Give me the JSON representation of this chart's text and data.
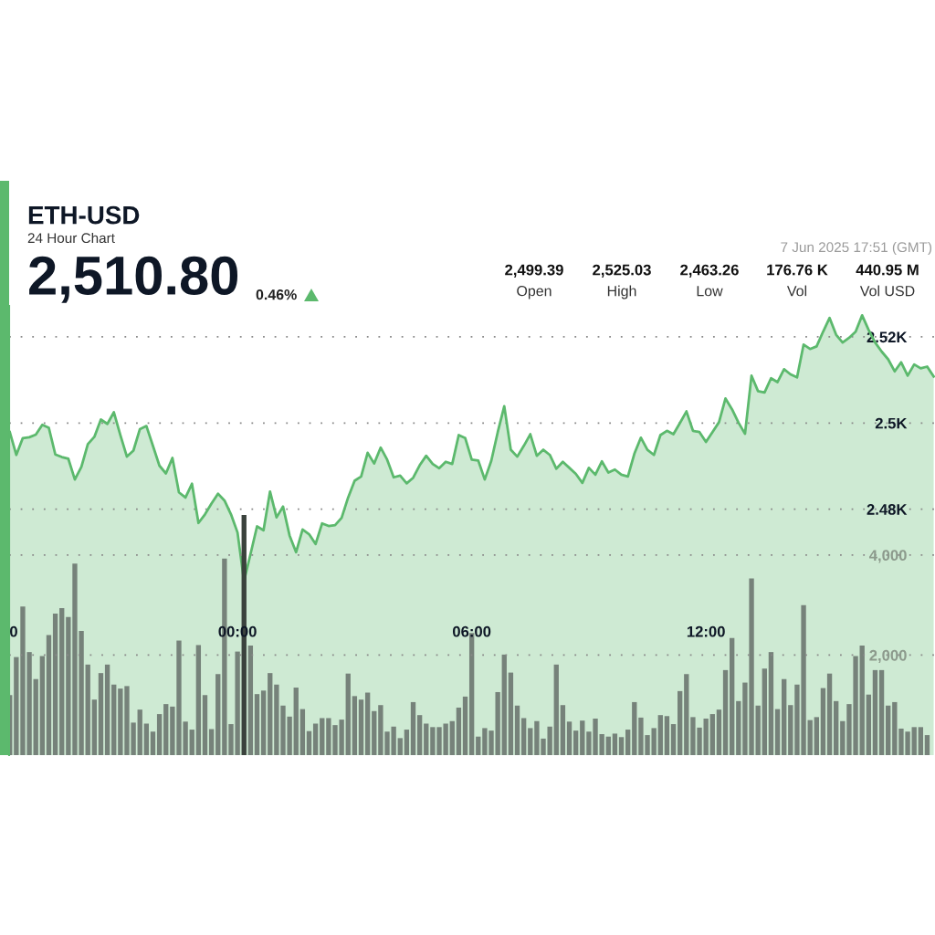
{
  "chart_data": {
    "type": "area",
    "title": "ETH-USD",
    "subtitle": "24 Hour Chart",
    "annotations": [
      "2,510.80",
      "0.46%",
      "7 Jun 2025 17:51 (GMT)",
      "2,499.39",
      "2,525.03",
      "2,463.26",
      "176.76 K",
      "440.95 M",
      "Open",
      "High",
      "Low",
      "Vol",
      "Vol USD"
    ],
    "x": [
      "2025-06-06T18:10",
      "2025-06-06T18:20",
      "2025-06-06T18:30",
      "2025-06-06T18:40",
      "2025-06-06T18:50",
      "2025-06-06T19:00",
      "2025-06-06T19:10",
      "2025-06-06T19:20",
      "2025-06-06T19:30",
      "2025-06-06T19:40",
      "2025-06-06T19:50",
      "2025-06-06T20:00",
      "2025-06-06T20:10",
      "2025-06-06T20:20",
      "2025-06-06T20:30",
      "2025-06-06T20:40",
      "2025-06-06T20:50",
      "2025-06-06T21:00",
      "2025-06-06T21:10",
      "2025-06-06T21:20",
      "2025-06-06T21:30",
      "2025-06-06T21:40",
      "2025-06-06T21:50",
      "2025-06-06T22:00",
      "2025-06-06T22:10",
      "2025-06-06T22:20",
      "2025-06-06T22:30",
      "2025-06-06T22:40",
      "2025-06-06T22:50",
      "2025-06-06T23:00",
      "2025-06-06T23:10",
      "2025-06-06T23:20",
      "2025-06-06T23:30",
      "2025-06-06T23:40",
      "2025-06-06T23:50",
      "2025-06-07T00:00",
      "2025-06-07T00:10",
      "2025-06-07T00:20",
      "2025-06-07T00:30",
      "2025-06-07T00:40",
      "2025-06-07T00:50",
      "2025-06-07T01:00",
      "2025-06-07T01:10",
      "2025-06-07T01:20",
      "2025-06-07T01:30",
      "2025-06-07T01:40",
      "2025-06-07T01:50",
      "2025-06-07T02:00",
      "2025-06-07T02:10",
      "2025-06-07T02:20",
      "2025-06-07T02:30",
      "2025-06-07T02:40",
      "2025-06-07T02:50",
      "2025-06-07T03:00",
      "2025-06-07T03:10",
      "2025-06-07T03:20",
      "2025-06-07T03:30",
      "2025-06-07T03:40",
      "2025-06-07T03:50",
      "2025-06-07T04:00",
      "2025-06-07T04:10",
      "2025-06-07T04:20",
      "2025-06-07T04:30",
      "2025-06-07T04:40",
      "2025-06-07T04:50",
      "2025-06-07T05:00",
      "2025-06-07T05:10",
      "2025-06-07T05:20",
      "2025-06-07T05:30",
      "2025-06-07T05:40",
      "2025-06-07T05:50",
      "2025-06-07T06:00",
      "2025-06-07T06:10",
      "2025-06-07T06:20",
      "2025-06-07T06:30",
      "2025-06-07T06:40",
      "2025-06-07T06:50",
      "2025-06-07T07:00",
      "2025-06-07T07:10",
      "2025-06-07T07:20",
      "2025-06-07T07:30",
      "2025-06-07T07:40",
      "2025-06-07T07:50",
      "2025-06-07T08:00",
      "2025-06-07T08:10",
      "2025-06-07T08:20",
      "2025-06-07T08:30",
      "2025-06-07T08:40",
      "2025-06-07T08:50",
      "2025-06-07T09:00",
      "2025-06-07T09:10",
      "2025-06-07T09:20",
      "2025-06-07T09:30",
      "2025-06-07T09:40",
      "2025-06-07T09:50",
      "2025-06-07T10:00",
      "2025-06-07T10:10",
      "2025-06-07T10:20",
      "2025-06-07T10:30",
      "2025-06-07T10:40",
      "2025-06-07T10:50",
      "2025-06-07T11:00",
      "2025-06-07T11:10",
      "2025-06-07T11:20",
      "2025-06-07T11:30",
      "2025-06-07T11:40",
      "2025-06-07T11:50",
      "2025-06-07T12:00",
      "2025-06-07T12:10",
      "2025-06-07T12:20",
      "2025-06-07T12:30",
      "2025-06-07T12:40",
      "2025-06-07T12:50",
      "2025-06-07T13:00",
      "2025-06-07T13:10",
      "2025-06-07T13:20",
      "2025-06-07T13:30",
      "2025-06-07T13:40",
      "2025-06-07T13:50",
      "2025-06-07T14:00",
      "2025-06-07T14:10",
      "2025-06-07T14:20",
      "2025-06-07T14:30",
      "2025-06-07T14:40",
      "2025-06-07T14:50",
      "2025-06-07T15:00",
      "2025-06-07T15:10",
      "2025-06-07T15:20",
      "2025-06-07T15:30",
      "2025-06-07T15:40",
      "2025-06-07T15:50",
      "2025-06-07T16:00",
      "2025-06-07T16:10",
      "2025-06-07T16:20",
      "2025-06-07T16:30",
      "2025-06-07T16:40",
      "2025-06-07T16:50",
      "2025-06-07T17:00",
      "2025-06-07T17:10",
      "2025-06-07T17:20",
      "2025-06-07T17:30",
      "2025-06-07T17:40",
      "2025-06-07T17:50"
    ],
    "series": [
      {
        "color": "#5cb96d",
        "values": [
          2497.9,
          2492.6,
          2496.5,
          2496.7,
          2497.3,
          2499.6,
          2498.9,
          2492.7,
          2492.1,
          2491.7,
          2486.9,
          2489.8,
          2495.1,
          2496.8,
          2500.8,
          2499.8,
          2502.5,
          2497.2,
          2492.2,
          2493.6,
          2498.6,
          2499.3,
          2494.7,
          2490.1,
          2488.3,
          2491.9,
          2483.9,
          2482.7,
          2485.9,
          2476.8,
          2478.8,
          2481.3,
          2483.6,
          2482.0,
          2478.8,
          2474.6,
          2463.3,
          2469.6,
          2476.0,
          2475.1,
          2484.1,
          2478.1,
          2480.6,
          2473.9,
          2470.0,
          2475.3,
          2474.2,
          2471.9,
          2476.7,
          2476.1,
          2476.3,
          2478.0,
          2482.7,
          2486.6,
          2487.6,
          2493.1,
          2490.6,
          2494.3,
          2491.5,
          2487.4,
          2487.8,
          2486.0,
          2487.3,
          2490.2,
          2492.4,
          2490.5,
          2489.5,
          2491.0,
          2490.5,
          2497.2,
          2496.5,
          2491.5,
          2491.3,
          2486.9,
          2491.2,
          2497.9,
          2503.9,
          2493.8,
          2492.2,
          2494.7,
          2497.4,
          2492.4,
          2493.8,
          2492.6,
          2489.4,
          2491.0,
          2489.6,
          2488.2,
          2486.1,
          2489.6,
          2488.0,
          2491.1,
          2488.5,
          2489.2,
          2488.0,
          2487.6,
          2492.9,
          2496.6,
          2493.8,
          2492.6,
          2497.2,
          2498.2,
          2497.4,
          2500.0,
          2502.7,
          2498.2,
          2497.9,
          2495.6,
          2497.9,
          2500.2,
          2505.7,
          2503.2,
          2500.1,
          2497.5,
          2511.0,
          2507.4,
          2507.1,
          2510.4,
          2509.5,
          2512.5,
          2511.3,
          2510.6,
          2518.2,
          2517.2,
          2517.8,
          2521.2,
          2524.4,
          2520.5,
          2518.7,
          2519.8,
          2521.2,
          2525.0,
          2521.6,
          2518.7,
          2516.6,
          2514.8,
          2512.0,
          2514.1,
          2511.0,
          2513.6,
          2512.7,
          2513.1,
          2510.8
        ]
      },
      {
        "type": "bar",
        "axis": "y2",
        "x": [
          "2025-06-06T18:10",
          "2025-06-06T18:20",
          "2025-06-06T18:30",
          "2025-06-06T18:40",
          "2025-06-06T18:50",
          "2025-06-06T19:00",
          "2025-06-06T19:10",
          "2025-06-06T19:20",
          "2025-06-06T19:30",
          "2025-06-06T19:40",
          "2025-06-06T19:50",
          "2025-06-06T20:00",
          "2025-06-06T20:10",
          "2025-06-06T20:20",
          "2025-06-06T20:30",
          "2025-06-06T20:40",
          "2025-06-06T20:50",
          "2025-06-06T21:00",
          "2025-06-06T21:10",
          "2025-06-06T21:20",
          "2025-06-06T21:30",
          "2025-06-06T21:40",
          "2025-06-06T21:50",
          "2025-06-06T22:00",
          "2025-06-06T22:10",
          "2025-06-06T22:20",
          "2025-06-06T22:30",
          "2025-06-06T22:40",
          "2025-06-06T22:50",
          "2025-06-06T23:00",
          "2025-06-06T23:10",
          "2025-06-06T23:20",
          "2025-06-06T23:30",
          "2025-06-06T23:40",
          "2025-06-06T23:50",
          "2025-06-07T00:00",
          "2025-06-07T00:10",
          "2025-06-07T00:20",
          "2025-06-07T00:30",
          "2025-06-07T00:40",
          "2025-06-07T00:50",
          "2025-06-07T01:00",
          "2025-06-07T01:10",
          "2025-06-07T01:20",
          "2025-06-07T01:30",
          "2025-06-07T01:40",
          "2025-06-07T01:50",
          "2025-06-07T02:00",
          "2025-06-07T02:10",
          "2025-06-07T02:20",
          "2025-06-07T02:30",
          "2025-06-07T02:40",
          "2025-06-07T02:50",
          "2025-06-07T03:00",
          "2025-06-07T03:10",
          "2025-06-07T03:20",
          "2025-06-07T03:30",
          "2025-06-07T03:40",
          "2025-06-07T03:50",
          "2025-06-07T04:00",
          "2025-06-07T04:10",
          "2025-06-07T04:20",
          "2025-06-07T04:30",
          "2025-06-07T04:40",
          "2025-06-07T04:50",
          "2025-06-07T05:00",
          "2025-06-07T05:10",
          "2025-06-07T05:20",
          "2025-06-07T05:30",
          "2025-06-07T05:40",
          "2025-06-07T05:50",
          "2025-06-07T06:00",
          "2025-06-07T06:10",
          "2025-06-07T06:20",
          "2025-06-07T06:30",
          "2025-06-07T06:40",
          "2025-06-07T06:50",
          "2025-06-07T07:00",
          "2025-06-07T07:10",
          "2025-06-07T07:20",
          "2025-06-07T07:30",
          "2025-06-07T07:40",
          "2025-06-07T07:50",
          "2025-06-07T08:00",
          "2025-06-07T08:10",
          "2025-06-07T08:20",
          "2025-06-07T08:30",
          "2025-06-07T08:40",
          "2025-06-07T08:50",
          "2025-06-07T09:00",
          "2025-06-07T09:10",
          "2025-06-07T09:20",
          "2025-06-07T09:30",
          "2025-06-07T09:40",
          "2025-06-07T09:50",
          "2025-06-07T10:00",
          "2025-06-07T10:10",
          "2025-06-07T10:20",
          "2025-06-07T10:30",
          "2025-06-07T10:40",
          "2025-06-07T10:50",
          "2025-06-07T11:00",
          "2025-06-07T11:10",
          "2025-06-07T11:20",
          "2025-06-07T11:30",
          "2025-06-07T11:40",
          "2025-06-07T11:50",
          "2025-06-07T12:00",
          "2025-06-07T12:10",
          "2025-06-07T12:20",
          "2025-06-07T12:30",
          "2025-06-07T12:40",
          "2025-06-07T12:50",
          "2025-06-07T13:00",
          "2025-06-07T13:10",
          "2025-06-07T13:20",
          "2025-06-07T13:30",
          "2025-06-07T13:40",
          "2025-06-07T13:50",
          "2025-06-07T14:00",
          "2025-06-07T14:10",
          "2025-06-07T14:20",
          "2025-06-07T14:30",
          "2025-06-07T14:40",
          "2025-06-07T14:50",
          "2025-06-07T15:00",
          "2025-06-07T15:10",
          "2025-06-07T15:20",
          "2025-06-07T15:30",
          "2025-06-07T15:40",
          "2025-06-07T15:50",
          "2025-06-07T16:00",
          "2025-06-07T16:10",
          "2025-06-07T16:20",
          "2025-06-07T16:30",
          "2025-06-07T16:40",
          "2025-06-07T16:50",
          "2025-06-07T17:00",
          "2025-06-07T17:10",
          "2025-06-07T17:20",
          "2025-06-07T17:30",
          "2025-06-07T17:40"
        ],
        "colors": [
          "#76827a",
          "#76827a",
          "#76827a",
          "#76827a",
          "#76827a",
          "#76827a",
          "#76827a",
          "#76827a",
          "#76827a",
          "#76827a",
          "#76827a",
          "#76827a",
          "#76827a",
          "#76827a",
          "#76827a",
          "#76827a",
          "#76827a",
          "#76827a",
          "#76827a",
          "#76827a",
          "#76827a",
          "#76827a",
          "#76827a",
          "#76827a",
          "#76827a",
          "#76827a",
          "#76827a",
          "#76827a",
          "#76827a",
          "#76827a",
          "#76827a",
          "#76827a",
          "#76827a",
          "#76827a",
          "#76827a",
          "#76827a",
          "#3b423d",
          "#76827a",
          "#76827a",
          "#76827a",
          "#76827a",
          "#76827a",
          "#76827a",
          "#76827a",
          "#76827a",
          "#76827a",
          "#76827a",
          "#76827a",
          "#76827a",
          "#76827a",
          "#76827a",
          "#76827a",
          "#76827a",
          "#76827a",
          "#76827a",
          "#76827a",
          "#76827a",
          "#76827a",
          "#76827a",
          "#76827a",
          "#76827a",
          "#76827a",
          "#76827a",
          "#76827a",
          "#76827a",
          "#76827a",
          "#76827a",
          "#76827a",
          "#76827a",
          "#76827a",
          "#76827a",
          "#76827a",
          "#76827a",
          "#76827a",
          "#76827a",
          "#76827a",
          "#76827a",
          "#76827a",
          "#76827a",
          "#76827a",
          "#76827a",
          "#76827a",
          "#76827a",
          "#76827a",
          "#76827a",
          "#76827a",
          "#76827a",
          "#76827a",
          "#76827a",
          "#76827a",
          "#76827a",
          "#76827a",
          "#76827a",
          "#76827a",
          "#76827a",
          "#76827a",
          "#76827a",
          "#76827a",
          "#76827a",
          "#76827a",
          "#76827a",
          "#76827a",
          "#76827a",
          "#76827a",
          "#76827a",
          "#76827a",
          "#76827a",
          "#76827a",
          "#76827a",
          "#76827a",
          "#76827a",
          "#76827a",
          "#76827a",
          "#76827a",
          "#76827a",
          "#76827a",
          "#76827a",
          "#76827a",
          "#76827a",
          "#76827a",
          "#76827a",
          "#76827a",
          "#76827a",
          "#76827a",
          "#76827a",
          "#76827a",
          "#76827a",
          "#76827a",
          "#76827a",
          "#76827a",
          "#76827a",
          "#76827a",
          "#76827a",
          "#76827a",
          "#76827a",
          "#76827a",
          "#76827a",
          "#76827a",
          "#76827a",
          "#76827a",
          "#76827a",
          "#76827a"
        ],
        "values": [
          1200,
          1960,
          2970,
          2060,
          1520,
          1980,
          2400,
          2830,
          2940,
          2760,
          3830,
          2480,
          1810,
          1110,
          1640,
          1810,
          1410,
          1330,
          1380,
          650,
          910,
          630,
          470,
          820,
          1020,
          970,
          2290,
          670,
          510,
          2200,
          1200,
          520,
          1620,
          3930,
          620,
          2070,
          4800,
          2190,
          1220,
          1290,
          1640,
          1410,
          990,
          770,
          1350,
          920,
          480,
          630,
          740,
          740,
          600,
          710,
          1630,
          1180,
          1110,
          1250,
          880,
          1000,
          470,
          570,
          340,
          510,
          1060,
          800,
          630,
          560,
          560,
          630,
          680,
          950,
          1170,
          2440,
          370,
          540,
          490,
          1260,
          2010,
          1650,
          990,
          740,
          540,
          680,
          330,
          570,
          1810,
          1000,
          670,
          490,
          690,
          470,
          730,
          420,
          370,
          430,
          360,
          510,
          1060,
          750,
          400,
          540,
          800,
          780,
          620,
          1280,
          1620,
          760,
          550,
          730,
          820,
          910,
          1700,
          2340,
          1080,
          1450,
          3530,
          990,
          1730,
          2060,
          920,
          1520,
          1000,
          1410,
          3000,
          700,
          760,
          1340,
          1630,
          1080,
          680,
          1020,
          1980,
          2190,
          1210,
          1700,
          1700,
          990,
          1060,
          530,
          470,
          560,
          560,
          400
        ]
      }
    ],
    "xlim": [
      "2025-06-06T18:09",
      "2025-06-07T17:52"
    ],
    "xticks": [
      {
        "value": "2025-06-06T18:16",
        "label": "0"
      },
      {
        "value": "2025-06-07T00:00",
        "label": "00:00"
      },
      {
        "value": "2025-06-07T06:00",
        "label": "06:00"
      },
      {
        "value": "2025-06-07T12:00",
        "label": "12:00"
      }
    ],
    "ylim": [
      2422.9,
      2527.2
    ],
    "yticks": [
      {
        "value": 2480,
        "label": "2.48K"
      },
      {
        "value": 2500,
        "label": "2.5K"
      },
      {
        "value": 2520,
        "label": "2.52K"
      }
    ],
    "y2lim": [
      0,
      8980
    ],
    "y2ticks": [
      {
        "value": 2000,
        "label": "2,000"
      },
      {
        "value": 4000,
        "label": "4,000"
      }
    ],
    "grid": "y"
  }
}
